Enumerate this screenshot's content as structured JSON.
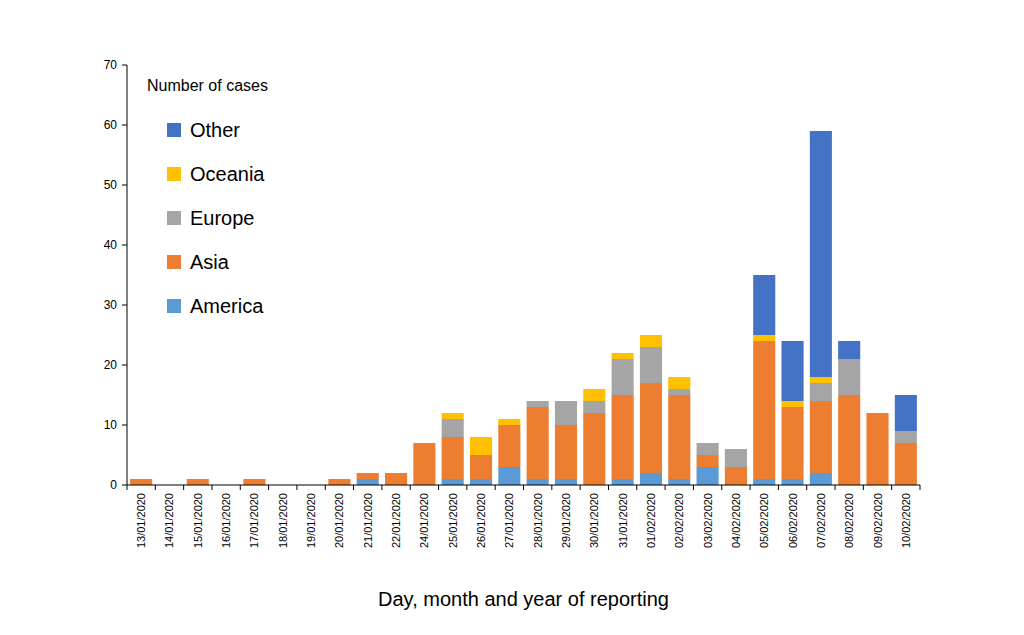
{
  "chart_data": {
    "type": "bar",
    "stacked": true,
    "legend": "top-left",
    "y_label": "Number of cases",
    "x_label": "Day, month and year of reporting",
    "categories": [
      "13/01/2020",
      "14/01/2020",
      "15/01/2020",
      "16/01/2020",
      "17/01/2020",
      "18/01/2020",
      "19/01/2020",
      "20/01/2020",
      "21/01/2020",
      "22/01/2020",
      "24/01/2020",
      "25/01/2020",
      "26/01/2020",
      "27/01/2020",
      "28/01/2020",
      "29/01/2020",
      "30/01/2020",
      "31/01/2020",
      "01/02/2020",
      "02/02/2020",
      "03/02/2020",
      "04/02/2020",
      "05/02/2020",
      "06/02/2020",
      "07/02/2020",
      "08/02/2020",
      "09/02/2020",
      "10/02/2020"
    ],
    "series": [
      {
        "name": "America",
        "color": "#5b9bd5",
        "values": [
          0,
          0,
          0,
          0,
          0,
          0,
          0,
          0,
          1,
          0,
          0,
          1,
          1,
          3,
          1,
          1,
          0,
          1,
          2,
          1,
          3,
          0,
          1,
          1,
          2,
          0,
          0,
          0
        ]
      },
      {
        "name": "Asia",
        "color": "#ed7d31",
        "values": [
          1,
          0,
          1,
          0,
          1,
          0,
          0,
          1,
          1,
          2,
          7,
          7,
          4,
          7,
          12,
          9,
          12,
          14,
          15,
          14,
          2,
          3,
          23,
          12,
          12,
          15,
          12,
          7
        ]
      },
      {
        "name": "Europe",
        "color": "#a5a5a5",
        "values": [
          0,
          0,
          0,
          0,
          0,
          0,
          0,
          0,
          0,
          0,
          0,
          3,
          0,
          0,
          1,
          4,
          2,
          6,
          6,
          1,
          2,
          3,
          0,
          0,
          3,
          6,
          0,
          2
        ]
      },
      {
        "name": "Oceania",
        "color": "#ffc000",
        "values": [
          0,
          0,
          0,
          0,
          0,
          0,
          0,
          0,
          0,
          0,
          0,
          1,
          3,
          1,
          0,
          0,
          2,
          1,
          2,
          2,
          0,
          0,
          1,
          1,
          1,
          0,
          0,
          0
        ]
      },
      {
        "name": "Other",
        "color": "#4472c4",
        "values": [
          0,
          0,
          0,
          0,
          0,
          0,
          0,
          0,
          0,
          0,
          0,
          0,
          0,
          0,
          0,
          0,
          0,
          0,
          0,
          0,
          0,
          0,
          10,
          10,
          41,
          3,
          0,
          6
        ]
      }
    ],
    "ylim": [
      0,
      70
    ],
    "yticks": [
      0,
      10,
      20,
      30,
      40,
      50,
      60,
      70
    ]
  }
}
